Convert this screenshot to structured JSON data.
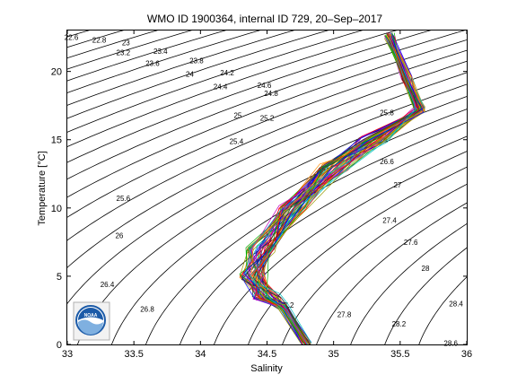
{
  "chart_data": {
    "type": "line",
    "title": "WMO ID 1900364, internal ID 729, 20–Sep–2017",
    "xlabel": "Salinity",
    "ylabel": "Temperature [°C]",
    "xlim": [
      33,
      36
    ],
    "ylim": [
      0,
      23
    ],
    "xticks": [
      {
        "value": 33,
        "label": "33"
      },
      {
        "value": 33.5,
        "label": "33.5"
      },
      {
        "value": 34,
        "label": "34"
      },
      {
        "value": 34.5,
        "label": "34.5"
      },
      {
        "value": 35,
        "label": "35"
      },
      {
        "value": 35.5,
        "label": "35.5"
      },
      {
        "value": 36,
        "label": "36"
      }
    ],
    "yticks": [
      {
        "value": 0,
        "label": "0"
      },
      {
        "value": 5,
        "label": "5"
      },
      {
        "value": 10,
        "label": "10"
      },
      {
        "value": 15,
        "label": "15"
      },
      {
        "value": 20,
        "label": "20"
      }
    ],
    "grid": false,
    "isopycnal_labels": [
      {
        "label": "22.6",
        "s": 33.03,
        "t": 22.5
      },
      {
        "label": "22.8",
        "s": 33.24,
        "t": 22.3
      },
      {
        "label": "23",
        "s": 33.44,
        "t": 22.1
      },
      {
        "label": "23.2",
        "s": 33.42,
        "t": 21.4
      },
      {
        "label": "23.4",
        "s": 33.7,
        "t": 21.5
      },
      {
        "label": "23.6",
        "s": 33.64,
        "t": 20.6
      },
      {
        "label": "23.8",
        "s": 33.97,
        "t": 20.8
      },
      {
        "label": "24",
        "s": 33.92,
        "t": 19.8
      },
      {
        "label": "24.2",
        "s": 34.2,
        "t": 19.9
      },
      {
        "label": "24.4",
        "s": 34.15,
        "t": 18.9
      },
      {
        "label": "24.6",
        "s": 34.48,
        "t": 19.0
      },
      {
        "label": "24.8",
        "s": 34.53,
        "t": 18.4
      },
      {
        "label": "25",
        "s": 34.28,
        "t": 16.8
      },
      {
        "label": "25.2",
        "s": 34.5,
        "t": 16.6
      },
      {
        "label": "25.4",
        "s": 34.27,
        "t": 14.9
      },
      {
        "label": "25.6",
        "s": 33.42,
        "t": 10.7
      },
      {
        "label": "25.8",
        "s": 35.4,
        "t": 17.0
      },
      {
        "label": "26",
        "s": 33.39,
        "t": 8.0
      },
      {
        "label": "26.2",
        "s": 35.35,
        "t": 15.2
      },
      {
        "label": "26.4",
        "s": 33.3,
        "t": 4.4
      },
      {
        "label": "26.6",
        "s": 35.4,
        "t": 13.4
      },
      {
        "label": "26.8",
        "s": 33.6,
        "t": 2.6
      },
      {
        "label": "27",
        "s": 35.48,
        "t": 11.7
      },
      {
        "label": "27.2",
        "s": 34.65,
        "t": 2.9
      },
      {
        "label": "27.4",
        "s": 35.42,
        "t": 9.1
      },
      {
        "label": "27.6",
        "s": 35.58,
        "t": 7.5
      },
      {
        "label": "27.8",
        "s": 35.08,
        "t": 2.2
      },
      {
        "label": "28",
        "s": 35.69,
        "t": 5.6
      },
      {
        "label": "28.2",
        "s": 35.49,
        "t": 1.5
      },
      {
        "label": "28.4",
        "s": 35.92,
        "t": 3.0
      },
      {
        "label": "28.6",
        "s": 35.88,
        "t": 0.1
      }
    ],
    "series_shape": {
      "description": "TS profile envelope",
      "points": [
        {
          "s": 35.42,
          "t": 22.6
        },
        {
          "s": 35.55,
          "t": 19.5
        },
        {
          "s": 35.65,
          "t": 17.2
        },
        {
          "s": 35.3,
          "t": 15.0
        },
        {
          "s": 35.0,
          "t": 13.0
        },
        {
          "s": 34.7,
          "t": 10.0
        },
        {
          "s": 34.45,
          "t": 7.0
        },
        {
          "s": 34.4,
          "t": 5.0
        },
        {
          "s": 34.5,
          "t": 3.5
        },
        {
          "s": 34.62,
          "t": 2.8
        },
        {
          "s": 34.8,
          "t": 0.0
        }
      ]
    },
    "series_colors": [
      "#0000ff",
      "#00aa00",
      "#ff0000",
      "#00bfbf",
      "#bf00bf",
      "#999900",
      "#333333",
      "#ff8800"
    ]
  },
  "logo": {
    "name": "noaa",
    "text": "NOAA",
    "primary_color": "#1c5ba8",
    "light_color": "#7fb0e0"
  }
}
